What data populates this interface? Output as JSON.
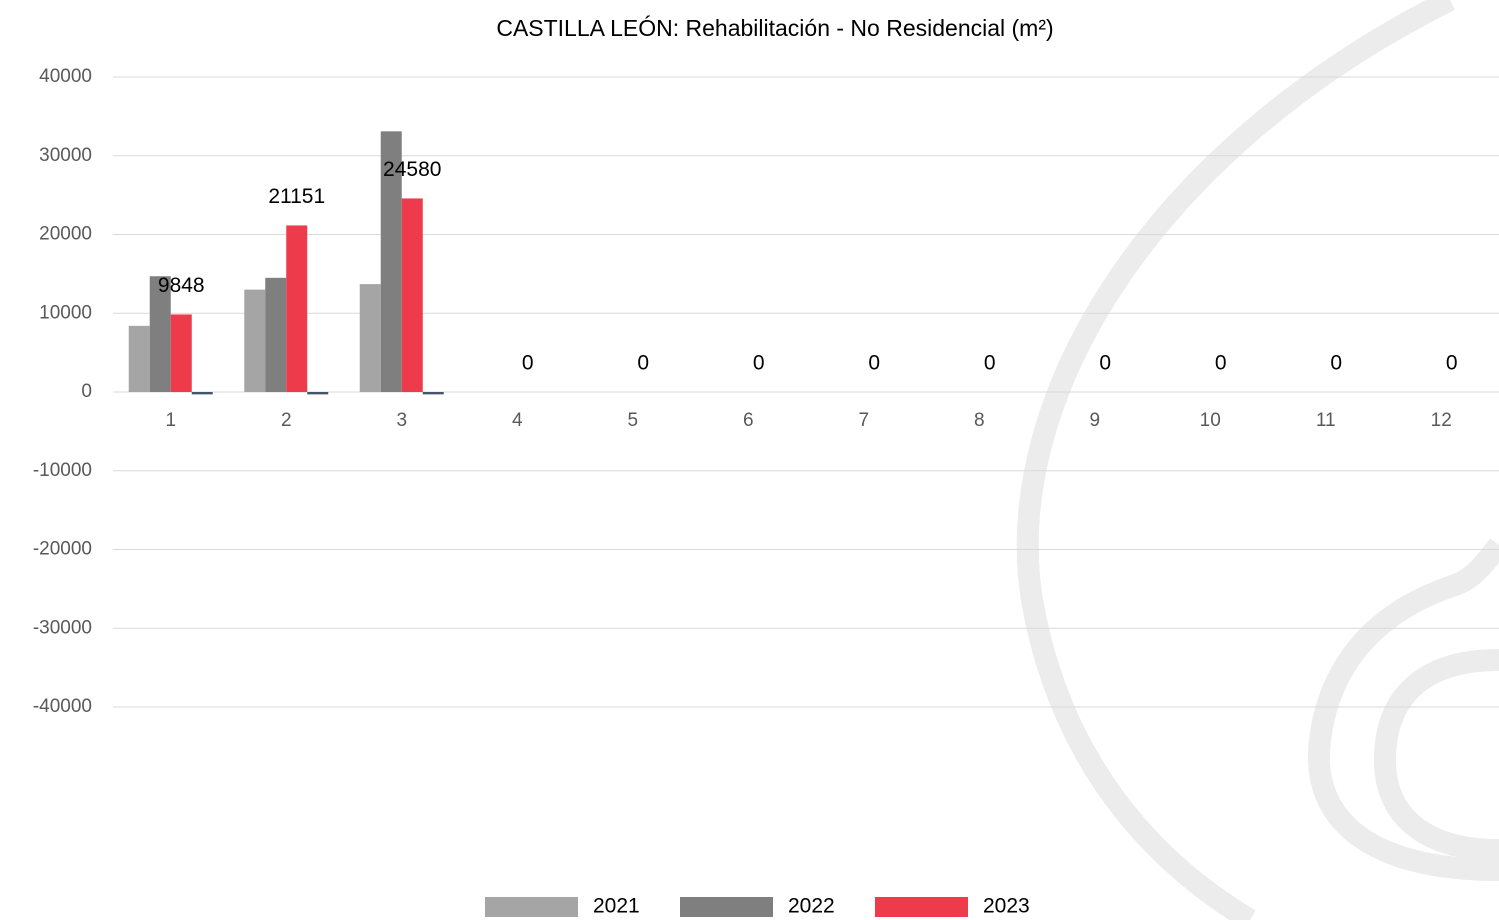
{
  "chart_data": {
    "type": "bar",
    "title": "CASTILLA LEÓN: Rehabilitación - No Residencial (m²)",
    "categories": [
      "1",
      "2",
      "3",
      "4",
      "5",
      "6",
      "7",
      "8",
      "9",
      "10",
      "11",
      "12"
    ],
    "series": [
      {
        "name": "2021",
        "color": "#a5a5a5",
        "values": [
          8400,
          13000,
          13700,
          null,
          null,
          null,
          null,
          null,
          null,
          null,
          null,
          null
        ]
      },
      {
        "name": "2022",
        "color": "#7f7f7f",
        "values": [
          14700,
          14500,
          33100,
          null,
          null,
          null,
          null,
          null,
          null,
          null,
          null,
          null
        ]
      },
      {
        "name": "2023",
        "color": "#ed3b4b",
        "values": [
          9848,
          21151,
          24580,
          0,
          0,
          0,
          0,
          0,
          0,
          0,
          0,
          0
        ]
      },
      {
        "color": "#44546a",
        "values": [
          -300,
          -300,
          -300,
          null,
          null,
          null,
          null,
          null,
          null,
          null,
          null,
          null
        ]
      }
    ],
    "labeled_series": 2,
    "ylim": [
      -40000,
      40000
    ],
    "yticks": [
      -40000,
      -30000,
      -20000,
      -10000,
      0,
      10000,
      20000,
      30000,
      40000
    ],
    "grid": true,
    "legend": "bottom"
  }
}
